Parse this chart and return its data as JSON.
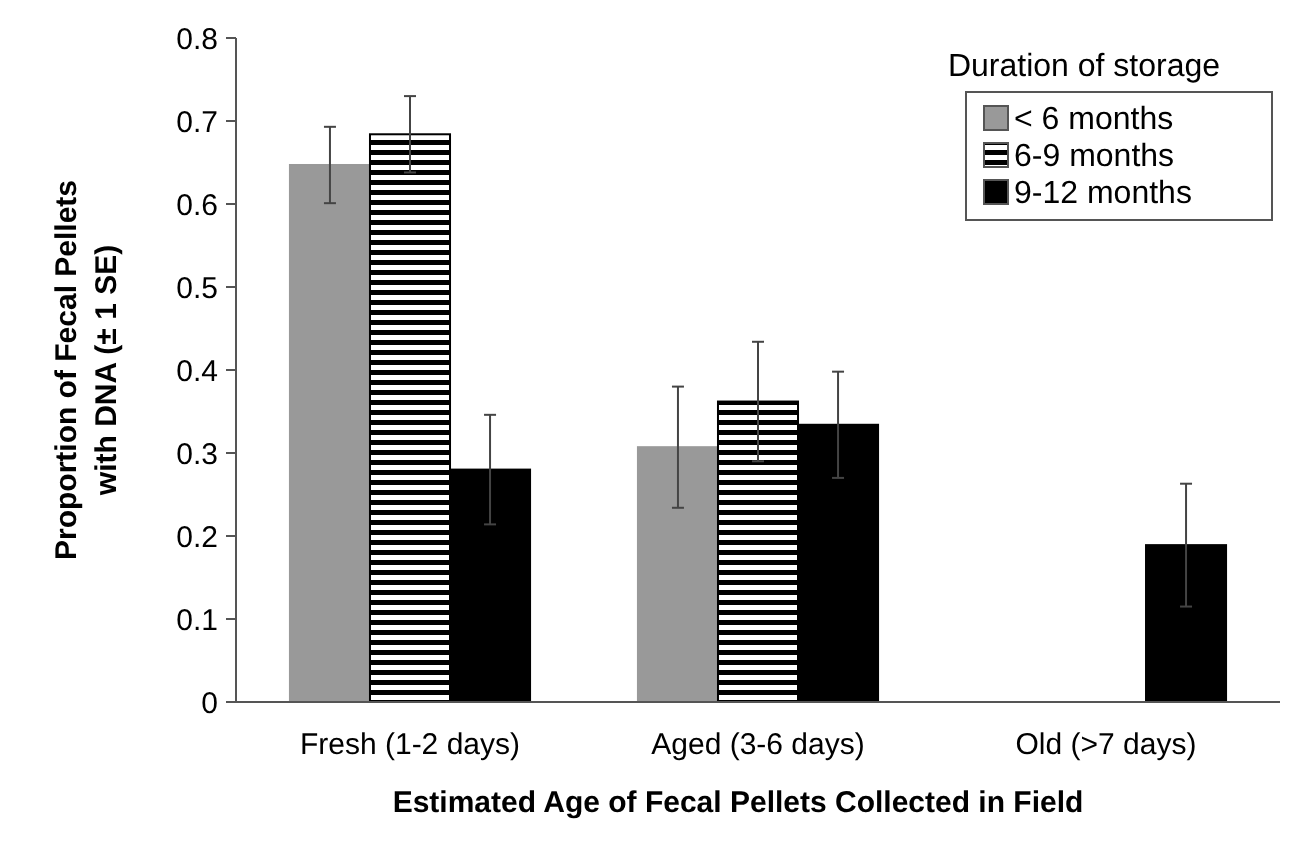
{
  "chart_data": {
    "type": "bar",
    "xlabel": "Estimated Age of Fecal Pellets Collected in Field",
    "ylabel": "Proportion of Fecal Pellets\nwith DNA (± 1 SE)",
    "legend_title": "Duration of storage",
    "legend": "top right",
    "categories": [
      "Fresh (1-2 days)",
      "Aged (3-6 days)",
      "Old (>7 days)"
    ],
    "ylim": [
      0,
      0.8
    ],
    "yticks": [
      0,
      0.1,
      0.2,
      0.3,
      0.4,
      0.5,
      0.6,
      0.7,
      0.8
    ],
    "grid": false,
    "series": [
      {
        "name": "< 6 months",
        "color": "#999999",
        "values": [
          0.647,
          0.307,
          null
        ],
        "errors": [
          0.046,
          0.073,
          null
        ]
      },
      {
        "name": "6-9 months",
        "color": "#000000",
        "values": [
          0.684,
          0.362,
          null
        ],
        "errors": [
          0.046,
          0.072,
          null
        ]
      },
      {
        "name": "9-12 months",
        "color": "#000000",
        "values": [
          0.28,
          0.334,
          0.189
        ],
        "errors": [
          0.066,
          0.064,
          0.074
        ]
      }
    ]
  }
}
